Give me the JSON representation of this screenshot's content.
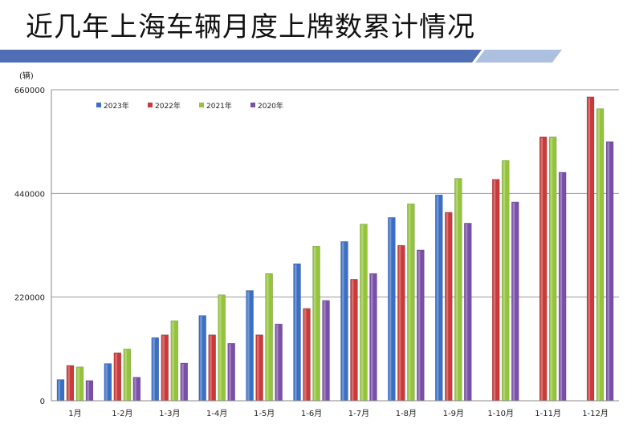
{
  "slide": {
    "title": "近几年上海车辆月度上牌数累计情况"
  },
  "colors": {
    "banner": "#4f6eb3",
    "banner_light": "#aec0df",
    "axis": "#888888",
    "grid": "#999999",
    "series": [
      "#3b6fc4",
      "#c93a3a",
      "#94c43b",
      "#7a4fa8"
    ]
  },
  "chart_data": {
    "type": "bar",
    "unit": "(辆)",
    "categories": [
      "1月",
      "1-2月",
      "1-3月",
      "1-4月",
      "1-5月",
      "1-6月",
      "1-7月",
      "1-8月",
      "1-9月",
      "1-10月",
      "1-11月",
      "1-12月"
    ],
    "series": [
      {
        "name": "2023年",
        "values": [
          45000,
          79000,
          134000,
          181000,
          234000,
          291000,
          338000,
          389000,
          437000,
          null,
          null,
          null
        ]
      },
      {
        "name": "2022年",
        "values": [
          75000,
          102000,
          140000,
          140000,
          140000,
          196000,
          258000,
          330000,
          400000,
          470000,
          560000,
          645000
        ]
      },
      {
        "name": "2021年",
        "values": [
          72000,
          110000,
          170000,
          225000,
          270000,
          328000,
          375000,
          418000,
          472000,
          510000,
          560000,
          620000
        ]
      },
      {
        "name": "2020年",
        "values": [
          43000,
          50000,
          80000,
          122000,
          163000,
          213000,
          270000,
          320000,
          377000,
          422000,
          485000,
          550000
        ]
      }
    ],
    "ylim": [
      0,
      660000
    ],
    "yticks": [
      "0",
      "220000",
      "440000",
      "660000"
    ],
    "grid": true,
    "legend_position": "top-left"
  }
}
